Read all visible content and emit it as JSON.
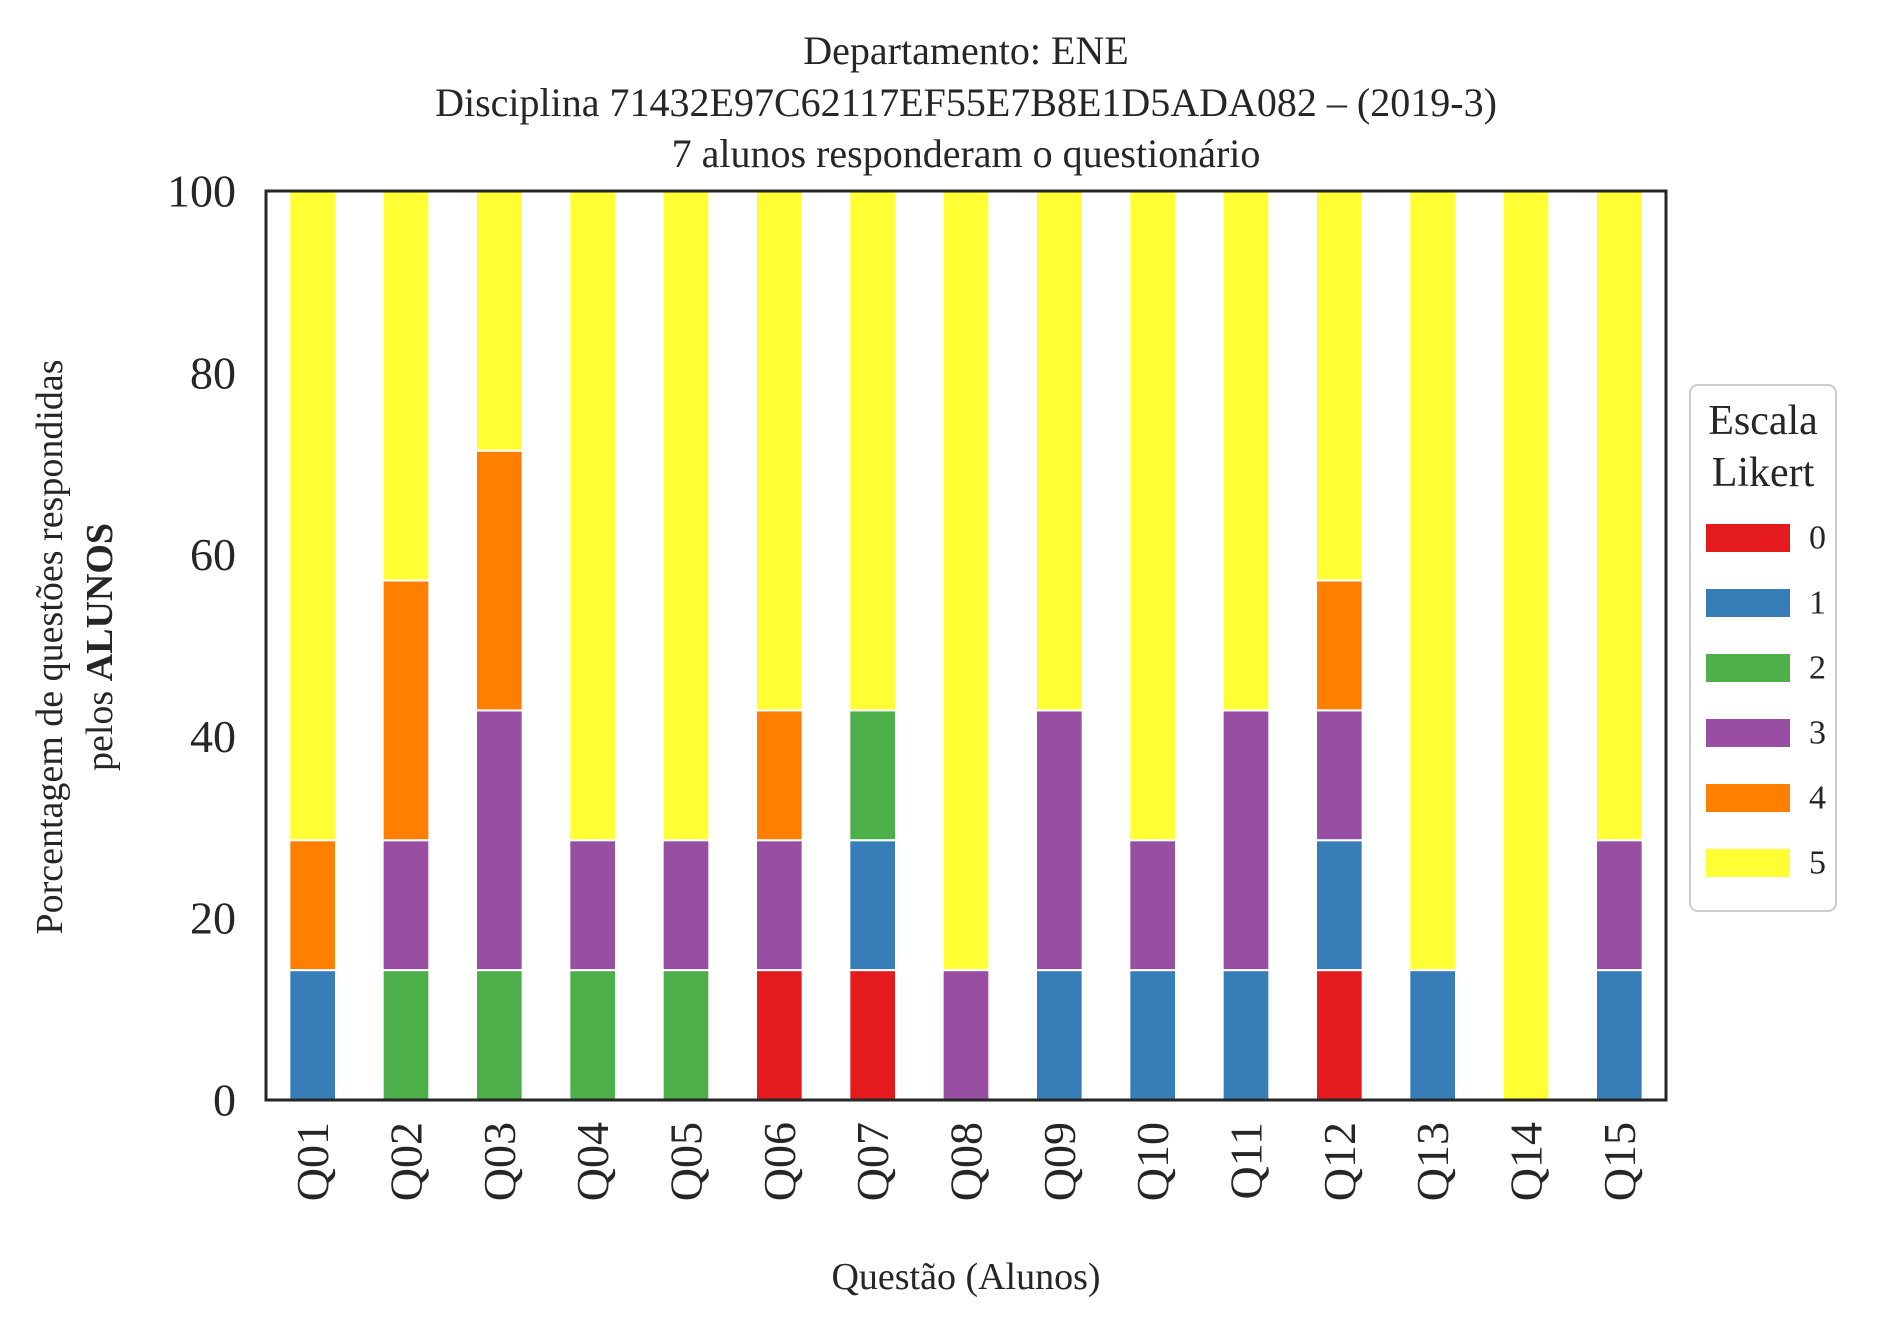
{
  "chart_data": {
    "type": "bar",
    "stacked": true,
    "title_lines": [
      "Departamento: ENE",
      "Disciplina 71432E97C62117EF55E7B8E1D5ADA082 – (2019-3)",
      "7 alunos responderam o questionário"
    ],
    "xlabel": "Questão (Alunos)",
    "ylabel_line1": "Porcentagem de questões respondidas",
    "ylabel_line2_prefix": "pelos ",
    "ylabel_line2_bold": "ALUNOS",
    "ylim": [
      0,
      100
    ],
    "yticks": [
      "0",
      "20",
      "40",
      "60",
      "80",
      "100"
    ],
    "categories": [
      "Q01",
      "Q02",
      "Q03",
      "Q04",
      "Q05",
      "Q06",
      "Q07",
      "Q08",
      "Q09",
      "Q10",
      "Q11",
      "Q12",
      "Q13",
      "Q14",
      "Q15"
    ],
    "legend": {
      "title_line1": "Escala",
      "title_line2": "Likert",
      "placement": "center-right, outside plot"
    },
    "grid": false,
    "series": [
      {
        "name": "0",
        "color": "#e41a1c",
        "values": [
          0,
          0,
          0,
          0,
          0,
          14.29,
          14.29,
          0,
          0,
          0,
          0,
          14.29,
          0,
          0,
          0
        ]
      },
      {
        "name": "1",
        "color": "#377eb8",
        "values": [
          14.29,
          0,
          0,
          0,
          0,
          0,
          14.29,
          0,
          14.29,
          14.29,
          14.29,
          14.29,
          14.29,
          0,
          14.29
        ]
      },
      {
        "name": "2",
        "color": "#4daf4a",
        "values": [
          0,
          14.29,
          14.29,
          14.29,
          14.29,
          0,
          14.29,
          0,
          0,
          0,
          0,
          0,
          0,
          0,
          0
        ]
      },
      {
        "name": "3",
        "color": "#984ea3",
        "values": [
          0,
          14.29,
          28.57,
          14.29,
          14.29,
          14.29,
          0,
          14.29,
          28.57,
          14.29,
          28.57,
          14.29,
          0,
          0,
          14.29
        ]
      },
      {
        "name": "4",
        "color": "#ff7f00",
        "values": [
          14.29,
          28.57,
          28.57,
          0,
          0,
          14.29,
          0,
          0,
          0,
          0,
          0,
          14.29,
          0,
          0,
          0
        ]
      },
      {
        "name": "5",
        "color": "#ffff33",
        "values": [
          71.43,
          42.86,
          28.57,
          71.43,
          71.43,
          57.14,
          57.14,
          85.71,
          57.14,
          71.43,
          57.14,
          42.86,
          85.71,
          100,
          71.43
        ]
      }
    ]
  }
}
